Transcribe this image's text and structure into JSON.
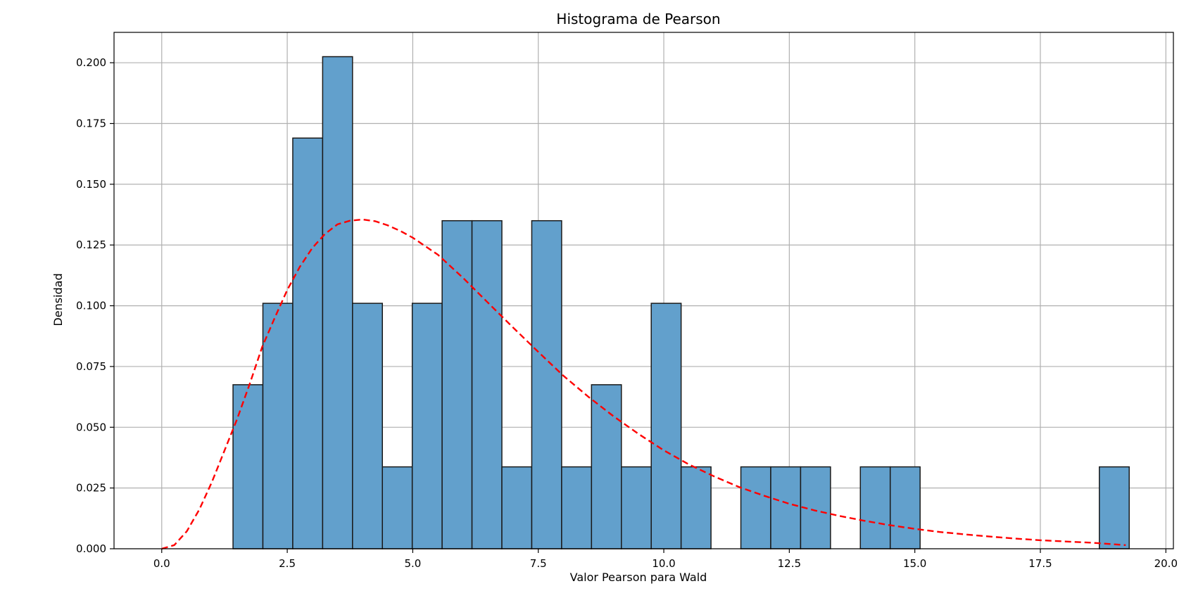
{
  "chart_data": {
    "type": "bar",
    "title": "Histograma de Pearson",
    "xlabel": "Valor Pearson para Wald",
    "ylabel": "Densidad",
    "xlim": [
      -0.95,
      20.15
    ],
    "ylim": [
      0,
      0.2125
    ],
    "grid": true,
    "x_ticks": [
      0.0,
      2.5,
      5.0,
      7.5,
      10.0,
      12.5,
      15.0,
      17.5,
      20.0
    ],
    "x_tick_labels": [
      "0.0",
      "2.5",
      "5.0",
      "7.5",
      "10.0",
      "12.5",
      "15.0",
      "17.5",
      "20.0"
    ],
    "y_ticks": [
      0.0,
      0.025,
      0.05,
      0.075,
      0.1,
      0.125,
      0.15,
      0.175,
      0.2
    ],
    "y_tick_labels": [
      "0.000",
      "0.025",
      "0.050",
      "0.075",
      "0.100",
      "0.125",
      "0.150",
      "0.175",
      "0.200"
    ],
    "bin_edges": [
      1.42,
      2.015,
      2.61,
      3.205,
      3.8,
      4.395,
      4.99,
      5.585,
      6.18,
      6.775,
      7.37,
      7.965,
      8.56,
      9.155,
      9.75,
      10.345,
      10.94,
      11.535,
      12.13,
      12.725,
      13.32,
      13.915,
      14.51,
      15.105,
      15.7,
      16.295,
      16.89,
      17.485,
      18.08,
      18.675,
      19.27
    ],
    "values": [
      0.0675,
      0.101,
      0.169,
      0.2025,
      0.101,
      0.0337,
      0.101,
      0.135,
      0.135,
      0.0337,
      0.135,
      0.0337,
      0.0675,
      0.0337,
      0.101,
      0.0337,
      0.0,
      0.0337,
      0.0337,
      0.0337,
      0.0,
      0.0337,
      0.0337,
      0.0,
      0.0,
      0.0,
      0.0,
      0.0,
      0.0,
      0.0337
    ],
    "bar_color": "#62a0cc",
    "bar_edge_color": "#1a1a1a",
    "curve": {
      "style": "dashed",
      "color": "#ff0000",
      "x": [
        0.0,
        0.25,
        0.5,
        0.75,
        1.0,
        1.25,
        1.5,
        1.75,
        2.0,
        2.25,
        2.5,
        2.75,
        3.0,
        3.25,
        3.5,
        3.75,
        4.0,
        4.25,
        4.5,
        4.75,
        5.0,
        5.5,
        6.0,
        6.5,
        7.0,
        7.5,
        8.0,
        8.5,
        9.0,
        9.5,
        10.0,
        10.5,
        11.0,
        11.5,
        12.0,
        12.5,
        13.0,
        13.5,
        14.0,
        14.5,
        15.0,
        15.5,
        16.0,
        16.5,
        17.0,
        17.5,
        18.0,
        18.5,
        19.2
      ],
      "y": [
        0.0,
        0.0015,
        0.0072,
        0.0162,
        0.0275,
        0.0404,
        0.0533,
        0.0677,
        0.083,
        0.095,
        0.1065,
        0.116,
        0.1238,
        0.1295,
        0.1335,
        0.135,
        0.1355,
        0.1348,
        0.1331,
        0.1308,
        0.128,
        0.121,
        0.1115,
        0.1012,
        0.091,
        0.081,
        0.0712,
        0.0625,
        0.0545,
        0.0472,
        0.0405,
        0.0347,
        0.0298,
        0.0254,
        0.0218,
        0.0185,
        0.0158,
        0.0135,
        0.0115,
        0.0097,
        0.0082,
        0.0069,
        0.0059,
        0.005,
        0.0042,
        0.0035,
        0.003,
        0.0025,
        0.0015
      ]
    }
  }
}
